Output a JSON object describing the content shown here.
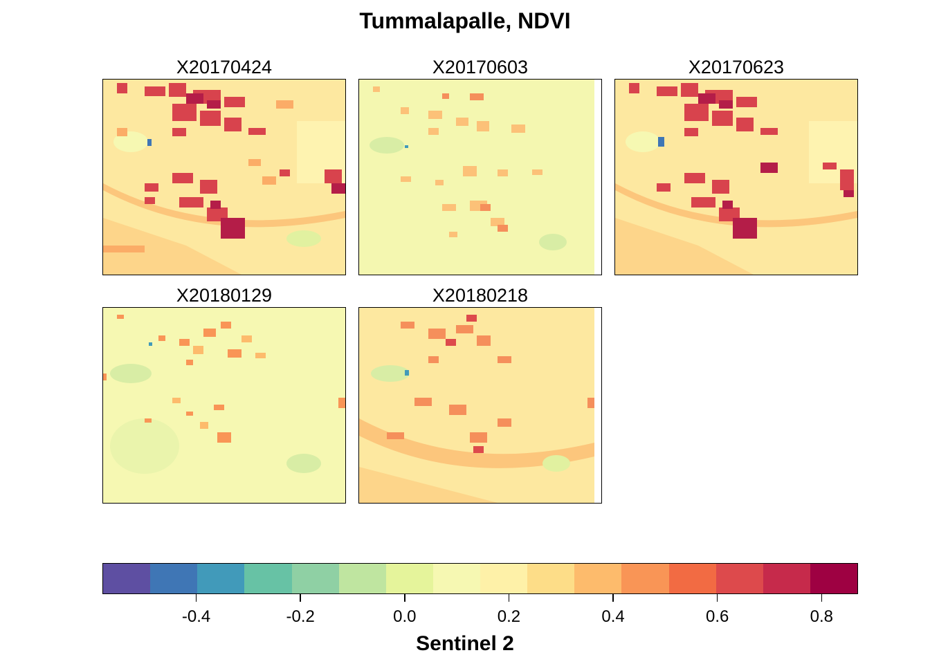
{
  "chart_data": {
    "type": "heatmap",
    "title": "Tummalapalle, NDVI",
    "panels": [
      {
        "name": "X20170424"
      },
      {
        "name": "X20170603"
      },
      {
        "name": "X20170623"
      },
      {
        "name": "X20180129"
      },
      {
        "name": "X20180218"
      }
    ],
    "colorbar": {
      "title": "Sentinel 2",
      "range": [
        -0.58,
        0.87
      ],
      "ticks": [
        "-0.4",
        "-0.2",
        "0.0",
        "0.2",
        "0.4",
        "0.6",
        "0.8"
      ],
      "tick_values": [
        -0.4,
        -0.2,
        0.0,
        0.2,
        0.4,
        0.6,
        0.8
      ],
      "colors": [
        "#5e4fa2",
        "#3f76b5",
        "#419aba",
        "#67c2a5",
        "#8fd0a4",
        "#bfe5a0",
        "#e5f49b",
        "#f6f8b2",
        "#fef1a8",
        "#fddd88",
        "#fdbb6c",
        "#f99556",
        "#f26b43",
        "#dd4a4c",
        "#c62a4b",
        "#9e0142"
      ]
    }
  }
}
